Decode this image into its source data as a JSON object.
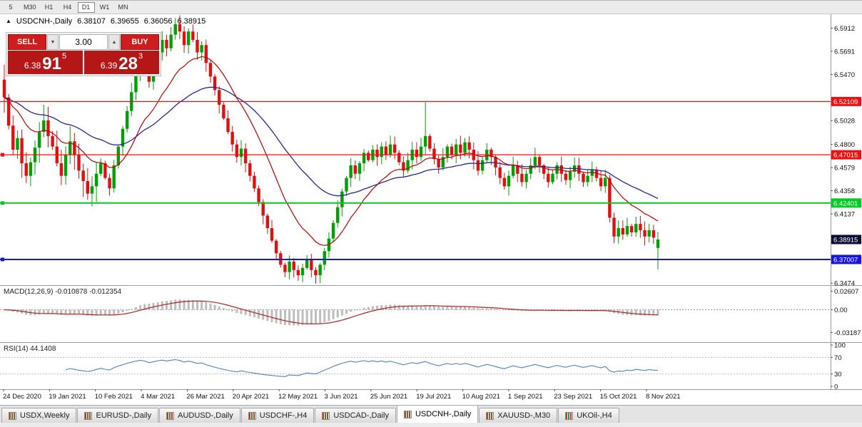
{
  "toolbar": {
    "periods": [
      "5",
      "M30",
      "H1",
      "H4",
      "D1",
      "W1",
      "MN"
    ],
    "active_period": "D1"
  },
  "symbol_header": {
    "symbol": "USDCNH-,Daily",
    "open": "6.38107",
    "high": "6.39655",
    "low": "6.36056",
    "close": "6.38915"
  },
  "one_click": {
    "sell_label": "SELL",
    "buy_label": "BUY",
    "volume": "3.00",
    "sell_quote": {
      "base": "6.38",
      "pips": "91",
      "frac": "5"
    },
    "buy_quote": {
      "base": "6.39",
      "pips": "28",
      "frac": "3"
    }
  },
  "price_axis": {
    "ticks": [
      {
        "label": "6.5912",
        "value": 6.5912
      },
      {
        "label": "6.5691",
        "value": 6.5691
      },
      {
        "label": "6.5470",
        "value": 6.547
      },
      {
        "label": "6.5028",
        "value": 6.5028
      },
      {
        "label": "6.4800",
        "value": 6.48
      },
      {
        "label": "6.4579",
        "value": 6.4579
      },
      {
        "label": "6.4358",
        "value": 6.4358
      },
      {
        "label": "6.4137",
        "value": 6.4137
      },
      {
        "label": "6.3474",
        "value": 6.3474
      }
    ]
  },
  "levels": [
    {
      "label": "6.52109",
      "value": 6.52109,
      "color": "#ee1111",
      "width": 1.2,
      "handle": false
    },
    {
      "label": "6.47015",
      "value": 6.47015,
      "color": "#ee1111",
      "width": 1.2,
      "handle": true
    },
    {
      "label": "6.42401",
      "value": 6.42401,
      "color": "#00cc22",
      "width": 2,
      "handle": true
    },
    {
      "label": "6.37007",
      "value": 6.37007,
      "color": "#1515dd",
      "width": 2,
      "handle": true
    }
  ],
  "current_price": {
    "label": "6.38915",
    "value": 6.38915,
    "color": "#0b0b33"
  },
  "time_axis": [
    "24 Dec 2020",
    "19 Jan 2021",
    "10 Feb 2021",
    "4 Mar 2021",
    "26 Mar 2021",
    "20 Apr 2021",
    "12 May 2021",
    "3 Jun 2021",
    "25 Jun 2021",
    "19 Jul 2021",
    "10 Aug 2021",
    "1 Sep 2021",
    "23 Sep 2021",
    "15 Oct 2021",
    "8 Nov 2021"
  ],
  "macd": {
    "header": "MACD(12,26,9) -0.010878 -0.012354",
    "ticks": [
      {
        "label": "0.02607",
        "value": 0.02607
      },
      {
        "label": "0.00",
        "value": 0
      },
      {
        "label": "-0.03187",
        "value": -0.03187
      }
    ]
  },
  "rsi": {
    "header": "RSI(14) 44.1408",
    "ticks": [
      {
        "label": "100",
        "value": 100
      },
      {
        "label": "70",
        "value": 70
      },
      {
        "label": "30",
        "value": 30
      },
      {
        "label": "0",
        "value": 0
      }
    ],
    "guide_levels": [
      70,
      30
    ]
  },
  "tabs": [
    {
      "label": "USDX,Weekly",
      "active": false
    },
    {
      "label": "EURUSD-,Daily",
      "active": false
    },
    {
      "label": "AUDUSD-,Daily",
      "active": false
    },
    {
      "label": "USDCHF-,H4",
      "active": false
    },
    {
      "label": "USDCAD-,Daily",
      "active": false
    },
    {
      "label": "USDCNH-,Daily",
      "active": true
    },
    {
      "label": "XAUUSD-,M30",
      "active": false
    },
    {
      "label": "UKOil-,H4",
      "active": false
    }
  ],
  "chart_data": {
    "type": "candlestick",
    "symbol": "USDCNH",
    "timeframe": "Daily",
    "first_open": 6.542,
    "closes": [
      6.525,
      6.498,
      6.475,
      6.486,
      6.462,
      6.45,
      6.463,
      6.477,
      6.492,
      6.503,
      6.488,
      6.478,
      6.462,
      6.45,
      6.47,
      6.483,
      6.47,
      6.455,
      6.445,
      6.433,
      6.44,
      6.452,
      6.462,
      6.448,
      6.438,
      6.46,
      6.478,
      6.495,
      6.512,
      6.53,
      6.548,
      6.562,
      6.555,
      6.54,
      6.552,
      6.568,
      6.58,
      6.572,
      6.585,
      6.595,
      6.588,
      6.575,
      6.588,
      6.58,
      6.568,
      6.575,
      6.558,
      6.545,
      6.532,
      6.518,
      6.505,
      6.492,
      6.48,
      6.468,
      6.476,
      6.462,
      6.45,
      6.438,
      6.425,
      6.412,
      6.4,
      6.388,
      6.376,
      6.365,
      6.358,
      6.368,
      6.36,
      6.355,
      6.362,
      6.37,
      6.36,
      6.355,
      6.365,
      6.378,
      6.39,
      6.405,
      6.42,
      6.435,
      6.448,
      6.46,
      6.452,
      6.462,
      6.472,
      6.465,
      6.475,
      6.468,
      6.478,
      6.47,
      6.48,
      6.472,
      6.463,
      6.455,
      6.465,
      6.475,
      6.468,
      6.478,
      6.488,
      6.476,
      6.466,
      6.458,
      6.468,
      6.478,
      6.47,
      6.48,
      6.472,
      6.482,
      6.475,
      6.465,
      6.455,
      6.465,
      6.475,
      6.468,
      6.458,
      6.448,
      6.44,
      6.45,
      6.46,
      6.452,
      6.444,
      6.452,
      6.46,
      6.468,
      6.46,
      6.452,
      6.444,
      6.452,
      6.46,
      6.452,
      6.446,
      6.454,
      6.46,
      6.452,
      6.444,
      6.45,
      6.456,
      6.448,
      6.44,
      6.448,
      6.41,
      6.392,
      6.4,
      6.394,
      6.402,
      6.396,
      6.404,
      6.398,
      6.392,
      6.398,
      6.391,
      6.38915
    ],
    "spike": {
      "index": 96,
      "high": 6.521
    },
    "last_candle": {
      "open": 6.38107,
      "high": 6.39655,
      "low": 6.36056,
      "close": 6.38915
    },
    "price_range": {
      "top": 6.6045,
      "bottom": 6.3455
    },
    "ma_fast_period": 15,
    "ma_slow_period": 40,
    "macd_params": [
      12,
      26,
      9
    ],
    "rsi_period": 14
  },
  "colors": {
    "candle_up": "#00a000",
    "candle_down": "#e01010",
    "ma_fast": "#c00000",
    "ma_slow": "#26269a",
    "macd_hist": "#bdbdbd",
    "macd_signal": "#b22222",
    "rsi_line": "#4f81bd",
    "axis_text": "#111111",
    "separator": "#9a9a9a"
  }
}
